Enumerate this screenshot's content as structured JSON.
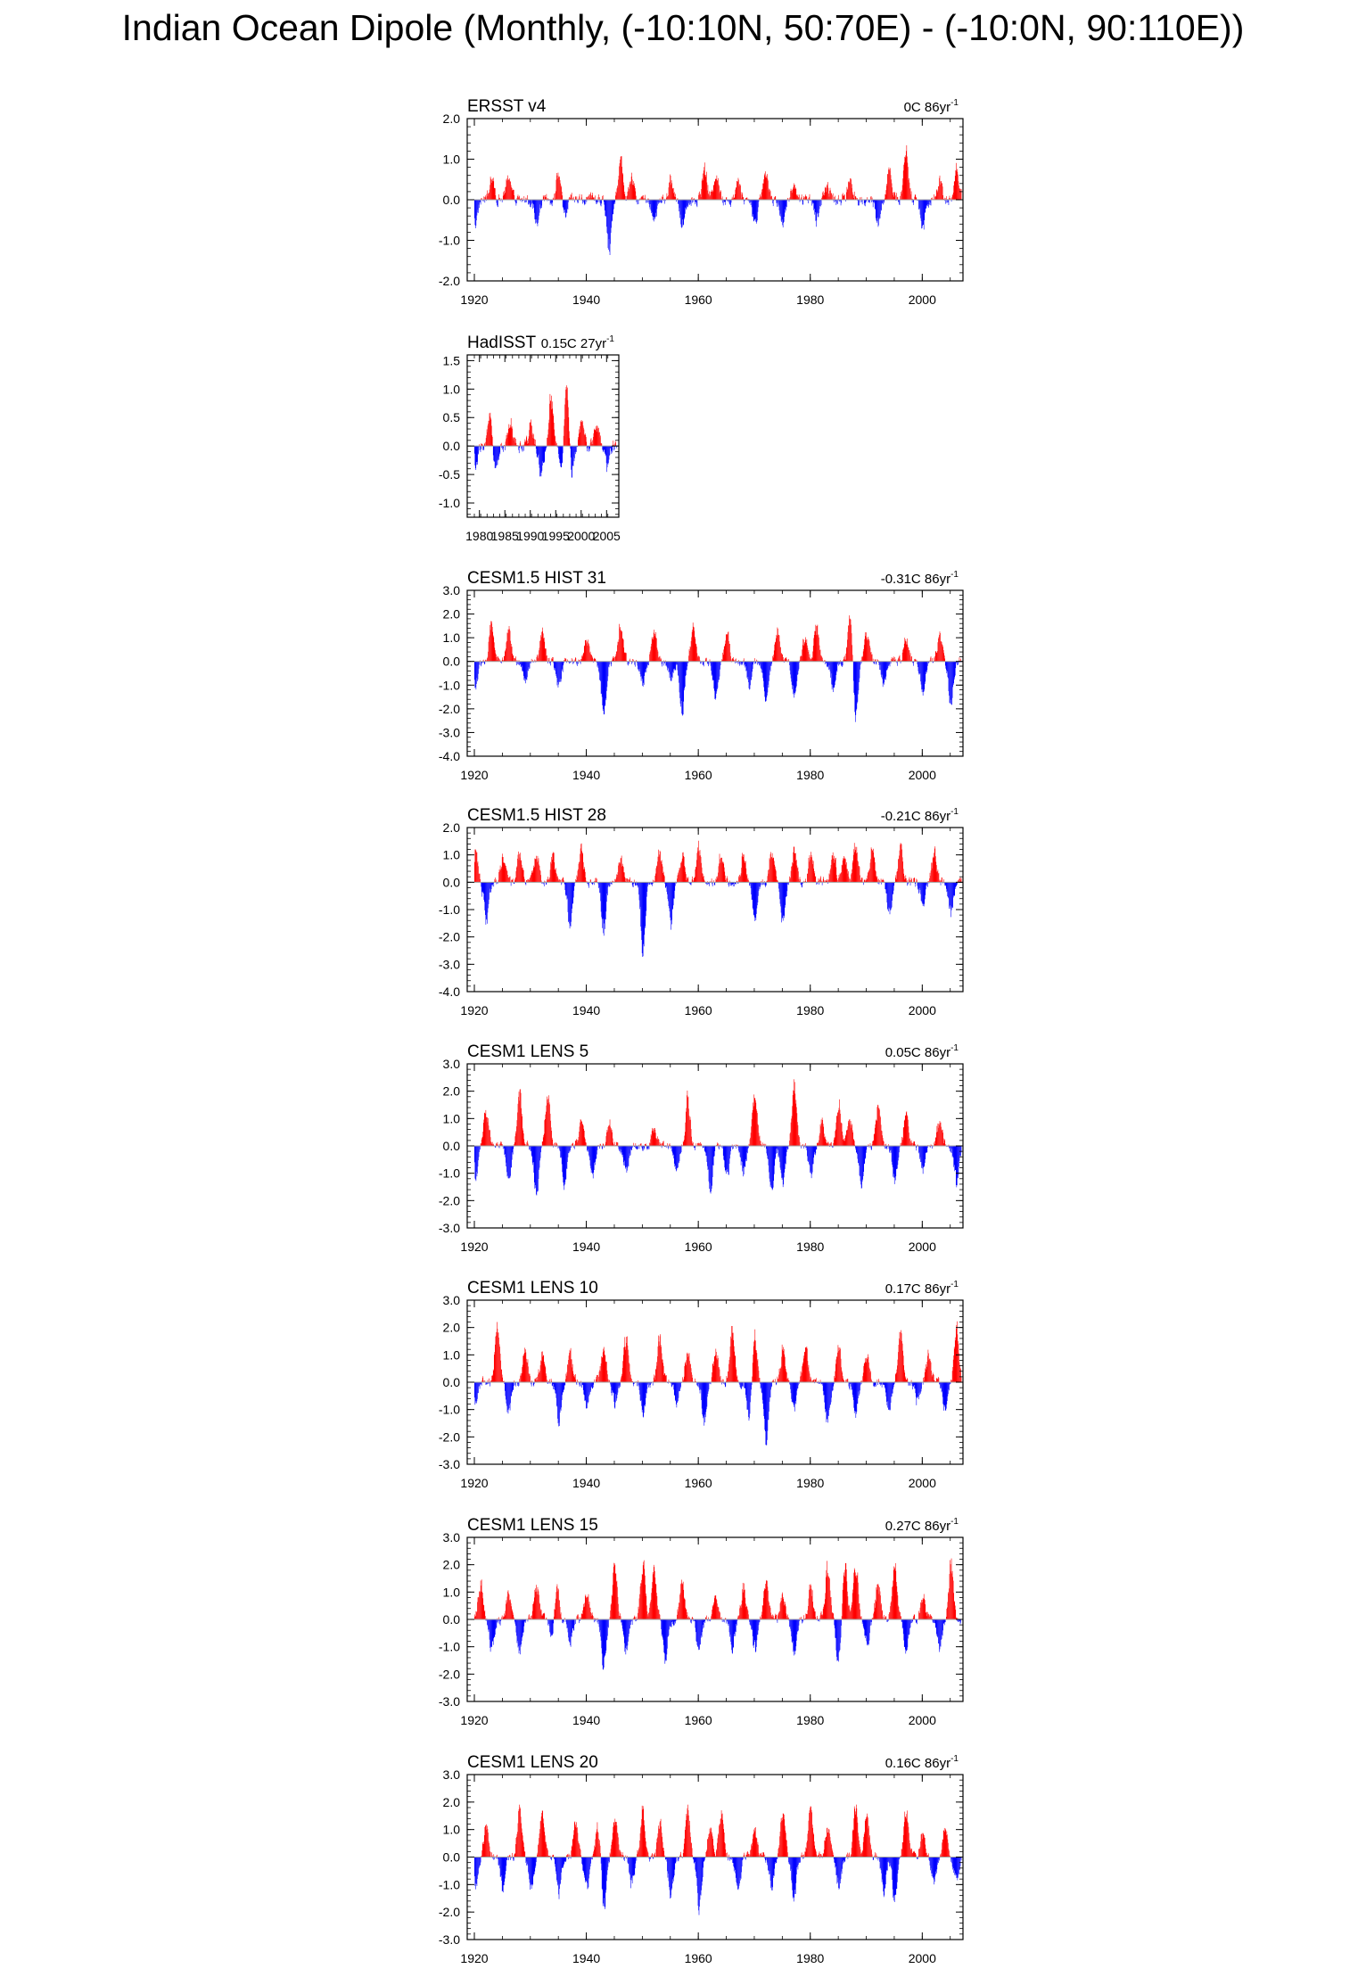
{
  "figure": {
    "title": "Indian Ocean Dipole (Monthly, (-10:10N, 50:70E) - (-10:0N, 90:110E))"
  },
  "colors": {
    "positive": "#ff0000",
    "negative": "#0000ff",
    "axis": "#000000",
    "zero_line": "#a0a0a0"
  },
  "chart_data": [
    {
      "type": "bar",
      "name": "ERSST v4",
      "title": "ERSST v4",
      "trend": "0C 86yr",
      "xlim": [
        1920,
        2006
      ],
      "x_ticks": [
        "1920",
        "1940",
        "1960",
        "1980",
        "2000"
      ],
      "ylim": [
        -2.0,
        2.0
      ],
      "y_ticks": [
        "2.0",
        "1.0",
        "0.0",
        "-1.0",
        "-2.0"
      ],
      "peaks": [
        [
          1920,
          -0.8
        ],
        [
          1923,
          0.7
        ],
        [
          1926,
          0.75
        ],
        [
          1931,
          -0.6
        ],
        [
          1935,
          0.9
        ],
        [
          1936,
          -0.6
        ],
        [
          1944,
          -1.55
        ],
        [
          1946,
          1.25
        ],
        [
          1948,
          0.6
        ],
        [
          1952,
          -0.6
        ],
        [
          1955,
          0.6
        ],
        [
          1957,
          -0.9
        ],
        [
          1961,
          1.0
        ],
        [
          1963,
          0.9
        ],
        [
          1967,
          0.7
        ],
        [
          1970,
          -0.7
        ],
        [
          1972,
          0.9
        ],
        [
          1975,
          -0.7
        ],
        [
          1977,
          0.5
        ],
        [
          1981,
          -0.6
        ],
        [
          1983,
          0.5
        ],
        [
          1987,
          0.6
        ],
        [
          1992,
          -0.8
        ],
        [
          1994,
          0.9
        ],
        [
          1997,
          1.5
        ],
        [
          2000,
          -0.8
        ],
        [
          2003,
          0.6
        ],
        [
          2006,
          1.0
        ]
      ],
      "noise": 0.45
    },
    {
      "type": "bar",
      "name": "HadISST",
      "title": "HadISST",
      "trend": "0.15C 27yr",
      "xlim": [
        1979,
        2006
      ],
      "x_ticks": [
        "1980",
        "1985",
        "1990",
        "1995",
        "2000",
        "2005"
      ],
      "ylim": [
        -1.25,
        1.6
      ],
      "y_ticks": [
        "1.5",
        "1.0",
        "0.5",
        "0.0",
        "-0.5",
        "-1.0"
      ],
      "peaks": [
        [
          1979,
          -0.6
        ],
        [
          1982,
          0.8
        ],
        [
          1983,
          -0.6
        ],
        [
          1986,
          0.5
        ],
        [
          1990,
          0.45
        ],
        [
          1992,
          -0.7
        ],
        [
          1994,
          1.0
        ],
        [
          1996,
          -0.8
        ],
        [
          1997,
          1.45
        ],
        [
          1998,
          -0.6
        ],
        [
          2000,
          0.5
        ],
        [
          2003,
          0.55
        ],
        [
          2005,
          -0.5
        ]
      ],
      "noise": 0.35
    },
    {
      "type": "bar",
      "name": "CESM1.5 HIST 31",
      "title": "CESM1.5 HIST 31",
      "trend": "-0.31C 86yr",
      "xlim": [
        1920,
        2006
      ],
      "x_ticks": [
        "1920",
        "1940",
        "1960",
        "1980",
        "2000"
      ],
      "ylim": [
        -4.0,
        3.0
      ],
      "y_ticks": [
        "3.0",
        "2.0",
        "1.0",
        "0.0",
        "-1.0",
        "-2.0",
        "-3.0",
        "-4.0"
      ],
      "peaks": [
        [
          1920,
          -1.8
        ],
        [
          1923,
          2.0
        ],
        [
          1926,
          1.9
        ],
        [
          1929,
          -1.3
        ],
        [
          1932,
          1.5
        ],
        [
          1935,
          -1.4
        ],
        [
          1940,
          1.3
        ],
        [
          1943,
          -3.1
        ],
        [
          1946,
          2.0
        ],
        [
          1950,
          -1.3
        ],
        [
          1952,
          1.6
        ],
        [
          1955,
          -1.0
        ],
        [
          1957,
          -2.6
        ],
        [
          1959,
          2.0
        ],
        [
          1963,
          -2.0
        ],
        [
          1965,
          1.5
        ],
        [
          1969,
          -1.3
        ],
        [
          1972,
          -2.2
        ],
        [
          1974,
          1.8
        ],
        [
          1977,
          -1.8
        ],
        [
          1979,
          1.4
        ],
        [
          1981,
          2.0
        ],
        [
          1984,
          -1.5
        ],
        [
          1987,
          2.6
        ],
        [
          1988,
          -2.9
        ],
        [
          1990,
          1.9
        ],
        [
          1993,
          -1.2
        ],
        [
          1997,
          1.3
        ],
        [
          2000,
          -1.8
        ],
        [
          2003,
          1.5
        ],
        [
          2005,
          -2.5
        ]
      ],
      "noise": 0.6
    },
    {
      "type": "bar",
      "name": "CESM1.5 HIST 28",
      "title": "CESM1.5 HIST 28",
      "trend": "-0.21C 86yr",
      "xlim": [
        1920,
        2006
      ],
      "x_ticks": [
        "1920",
        "1940",
        "1960",
        "1980",
        "2000"
      ],
      "ylim": [
        -4.0,
        2.0
      ],
      "y_ticks": [
        "2.0",
        "1.0",
        "0.0",
        "-1.0",
        "-2.0",
        "-3.0",
        "-4.0"
      ],
      "peaks": [
        [
          1920,
          1.7
        ],
        [
          1922,
          -1.8
        ],
        [
          1925,
          1.3
        ],
        [
          1928,
          1.4
        ],
        [
          1931,
          1.5
        ],
        [
          1934,
          1.3
        ],
        [
          1937,
          -2.0
        ],
        [
          1939,
          1.5
        ],
        [
          1943,
          -2.3
        ],
        [
          1946,
          1.2
        ],
        [
          1950,
          -3.1
        ],
        [
          1953,
          1.4
        ],
        [
          1955,
          -1.9
        ],
        [
          1957,
          1.3
        ],
        [
          1960,
          1.7
        ],
        [
          1964,
          1.3
        ],
        [
          1968,
          1.3
        ],
        [
          1970,
          -1.7
        ],
        [
          1973,
          1.4
        ],
        [
          1975,
          -2.0
        ],
        [
          1977,
          1.6
        ],
        [
          1980,
          1.4
        ],
        [
          1984,
          1.5
        ],
        [
          1986,
          1.2
        ],
        [
          1988,
          1.8
        ],
        [
          1991,
          1.5
        ],
        [
          1994,
          -1.4
        ],
        [
          1996,
          1.5
        ],
        [
          2000,
          -1.2
        ],
        [
          2002,
          1.4
        ],
        [
          2005,
          -1.5
        ]
      ],
      "noise": 0.55
    },
    {
      "type": "bar",
      "name": "CESM1 LENS 5",
      "title": "CESM1 LENS 5",
      "trend": "0.05C 86yr",
      "xlim": [
        1920,
        2006
      ],
      "x_ticks": [
        "1920",
        "1940",
        "1960",
        "1980",
        "2000"
      ],
      "ylim": [
        -3.0,
        3.0
      ],
      "y_ticks": [
        "3.0",
        "2.0",
        "1.0",
        "0.0",
        "-1.0",
        "-2.0",
        "-3.0"
      ],
      "peaks": [
        [
          1920,
          -1.8
        ],
        [
          1922,
          1.6
        ],
        [
          1926,
          -1.7
        ],
        [
          1928,
          2.4
        ],
        [
          1931,
          -2.1
        ],
        [
          1933,
          2.5
        ],
        [
          1936,
          -1.8
        ],
        [
          1939,
          1.3
        ],
        [
          1941,
          -1.5
        ],
        [
          1944,
          1.0
        ],
        [
          1947,
          -1.2
        ],
        [
          1952,
          0.9
        ],
        [
          1956,
          -1.2
        ],
        [
          1958,
          2.2
        ],
        [
          1962,
          -2.3
        ],
        [
          1965,
          -1.5
        ],
        [
          1968,
          -1.2
        ],
        [
          1970,
          2.6
        ],
        [
          1973,
          -2.1
        ],
        [
          1975,
          -1.8
        ],
        [
          1977,
          2.8
        ],
        [
          1980,
          -1.3
        ],
        [
          1982,
          1.1
        ],
        [
          1985,
          2.0
        ],
        [
          1987,
          1.4
        ],
        [
          1989,
          -1.9
        ],
        [
          1992,
          1.8
        ],
        [
          1995,
          -1.7
        ],
        [
          1997,
          1.5
        ],
        [
          2000,
          -1.1
        ],
        [
          2003,
          1.2
        ],
        [
          2006,
          -1.7
        ]
      ],
      "noise": 0.5
    },
    {
      "type": "bar",
      "name": "CESM1 LENS 10",
      "title": "CESM1 LENS 10",
      "trend": "0.17C 86yr",
      "xlim": [
        1920,
        2006
      ],
      "x_ticks": [
        "1920",
        "1940",
        "1960",
        "1980",
        "2000"
      ],
      "ylim": [
        -3.0,
        3.0
      ],
      "y_ticks": [
        "3.0",
        "2.0",
        "1.0",
        "0.0",
        "-1.0",
        "-2.0",
        "-3.0"
      ],
      "peaks": [
        [
          1920,
          -1.1
        ],
        [
          1924,
          2.6
        ],
        [
          1926,
          -1.5
        ],
        [
          1929,
          1.5
        ],
        [
          1932,
          1.2
        ],
        [
          1935,
          -1.8
        ],
        [
          1937,
          1.4
        ],
        [
          1940,
          -1.2
        ],
        [
          1943,
          1.6
        ],
        [
          1945,
          -1.0
        ],
        [
          1947,
          2.2
        ],
        [
          1950,
          -1.5
        ],
        [
          1953,
          2.2
        ],
        [
          1956,
          -1.0
        ],
        [
          1958,
          1.4
        ],
        [
          1961,
          -1.8
        ],
        [
          1963,
          1.5
        ],
        [
          1966,
          2.3
        ],
        [
          1969,
          -1.6
        ],
        [
          1970,
          2.3
        ],
        [
          1972,
          -2.9
        ],
        [
          1975,
          1.6
        ],
        [
          1977,
          -1.3
        ],
        [
          1979,
          1.8
        ],
        [
          1983,
          -1.8
        ],
        [
          1985,
          1.5
        ],
        [
          1988,
          -1.4
        ],
        [
          1990,
          1.2
        ],
        [
          1994,
          -1.3
        ],
        [
          1996,
          2.2
        ],
        [
          1999,
          -1.0
        ],
        [
          2001,
          1.4
        ],
        [
          2004,
          -1.4
        ],
        [
          2006,
          2.3
        ]
      ],
      "noise": 0.55
    },
    {
      "type": "bar",
      "name": "CESM1 LENS 15",
      "title": "CESM1 LENS 15",
      "trend": "0.27C 86yr",
      "xlim": [
        1920,
        2006
      ],
      "x_ticks": [
        "1920",
        "1940",
        "1960",
        "1980",
        "2000"
      ],
      "ylim": [
        -3.0,
        3.0
      ],
      "y_ticks": [
        "3.0",
        "2.0",
        "1.0",
        "0.0",
        "-1.0",
        "-2.0",
        "-3.0"
      ],
      "peaks": [
        [
          1921,
          1.8
        ],
        [
          1923,
          -1.3
        ],
        [
          1926,
          1.2
        ],
        [
          1928,
          -1.6
        ],
        [
          1931,
          1.6
        ],
        [
          1934,
          -1.6
        ],
        [
          1934.5,
          2.4
        ],
        [
          1937,
          -1.2
        ],
        [
          1940,
          1.3
        ],
        [
          1943,
          -2.4
        ],
        [
          1945,
          2.5
        ],
        [
          1947,
          -1.5
        ],
        [
          1950,
          2.6
        ],
        [
          1952,
          2.3
        ],
        [
          1954,
          -1.9
        ],
        [
          1957,
          1.6
        ],
        [
          1960,
          -1.5
        ],
        [
          1963,
          1.1
        ],
        [
          1966,
          -1.3
        ],
        [
          1968,
          1.5
        ],
        [
          1970,
          -1.4
        ],
        [
          1972,
          1.8
        ],
        [
          1975,
          1.3
        ],
        [
          1977,
          -1.7
        ],
        [
          1980,
          1.5
        ],
        [
          1983,
          2.4
        ],
        [
          1985,
          -2.1
        ],
        [
          1986,
          2.6
        ],
        [
          1988,
          2.7
        ],
        [
          1990,
          -1.2
        ],
        [
          1992,
          1.7
        ],
        [
          1995,
          2.5
        ],
        [
          1997,
          -1.5
        ],
        [
          2000,
          1.2
        ],
        [
          2003,
          -1.3
        ],
        [
          2005,
          2.7
        ]
      ],
      "noise": 0.55
    },
    {
      "type": "bar",
      "name": "CESM1 LENS 20",
      "title": "CESM1 LENS 20",
      "trend": "0.16C 86yr",
      "xlim": [
        1920,
        2006
      ],
      "x_ticks": [
        "1920",
        "1940",
        "1960",
        "1980",
        "2000"
      ],
      "ylim": [
        -3.0,
        3.0
      ],
      "y_ticks": [
        "3.0",
        "2.0",
        "1.0",
        "0.0",
        "-1.0",
        "-2.0",
        "-3.0"
      ],
      "peaks": [
        [
          1920,
          -1.8
        ],
        [
          1922,
          1.4
        ],
        [
          1925,
          -1.5
        ],
        [
          1928,
          2.3
        ],
        [
          1930,
          -1.4
        ],
        [
          1932,
          2.1
        ],
        [
          1935,
          -1.6
        ],
        [
          1938,
          1.5
        ],
        [
          1940,
          -1.5
        ],
        [
          1942,
          1.6
        ],
        [
          1943,
          -2.4
        ],
        [
          1945,
          2.0
        ],
        [
          1948,
          -1.3
        ],
        [
          1950,
          2.2
        ],
        [
          1953,
          1.5
        ],
        [
          1955,
          -1.8
        ],
        [
          1958,
          2.2
        ],
        [
          1960,
          -2.2
        ],
        [
          1962,
          1.4
        ],
        [
          1964,
          2.2
        ],
        [
          1967,
          -1.5
        ],
        [
          1970,
          1.2
        ],
        [
          1973,
          -1.3
        ],
        [
          1975,
          2.2
        ],
        [
          1977,
          -1.8
        ],
        [
          1980,
          2.1
        ],
        [
          1983,
          1.5
        ],
        [
          1985,
          -1.4
        ],
        [
          1988,
          2.4
        ],
        [
          1990,
          2.0
        ],
        [
          1993,
          -1.5
        ],
        [
          1995,
          -2.2
        ],
        [
          1997,
          2.2
        ],
        [
          2000,
          1.1
        ],
        [
          2002,
          -1.2
        ],
        [
          2004,
          1.4
        ],
        [
          2006,
          -1.2
        ]
      ],
      "noise": 0.55
    }
  ]
}
